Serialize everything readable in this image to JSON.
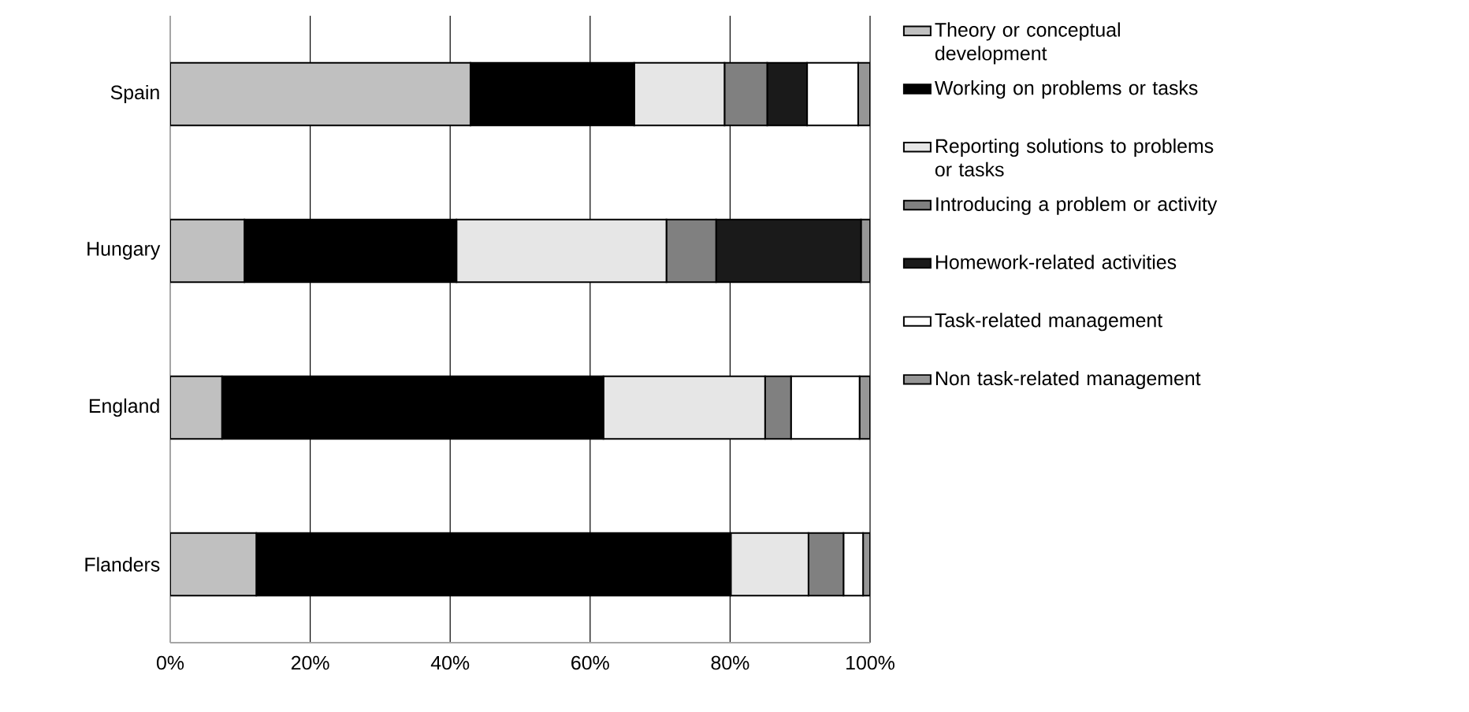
{
  "chart_data": {
    "type": "bar",
    "orientation": "horizontal",
    "stacked": true,
    "categories": [
      "Spain",
      "Hungary",
      "England",
      "Flanders"
    ],
    "series": [
      {
        "name": "Theory or conceptual development",
        "color": "#c0c0c0",
        "values": [
          42.9,
          10.6,
          7.4,
          12.3
        ]
      },
      {
        "name": "Working on problems or tasks",
        "color": "#000000",
        "values": [
          23.4,
          30.3,
          54.5,
          67.8
        ]
      },
      {
        "name": "Reporting solutions to problems or tasks",
        "color": "#e6e6e6",
        "values": [
          12.9,
          30.0,
          23.1,
          11.1
        ]
      },
      {
        "name": "Introducing a problem or activity",
        "color": "#808080",
        "values": [
          6.1,
          7.1,
          3.7,
          5.0
        ]
      },
      {
        "name": "Homework-related activities",
        "color": "#1a1a1a",
        "values": [
          5.7,
          20.7,
          0,
          0
        ]
      },
      {
        "name": "Task-related management",
        "color": "#ffffff",
        "values": [
          7.3,
          0,
          9.8,
          2.8
        ]
      },
      {
        "name": "Non task-related management",
        "color": "#969696",
        "values": [
          1.7,
          1.3,
          1.5,
          1.0
        ]
      }
    ],
    "xlim": [
      0,
      100
    ],
    "xticks": [
      {
        "value": 0,
        "label": "0%"
      },
      {
        "value": 20,
        "label": "20%"
      },
      {
        "value": 40,
        "label": "40%"
      },
      {
        "value": 60,
        "label": "60%"
      },
      {
        "value": 80,
        "label": "80%"
      },
      {
        "value": 100,
        "label": "100%"
      }
    ],
    "grid": "x",
    "legend": "right"
  }
}
